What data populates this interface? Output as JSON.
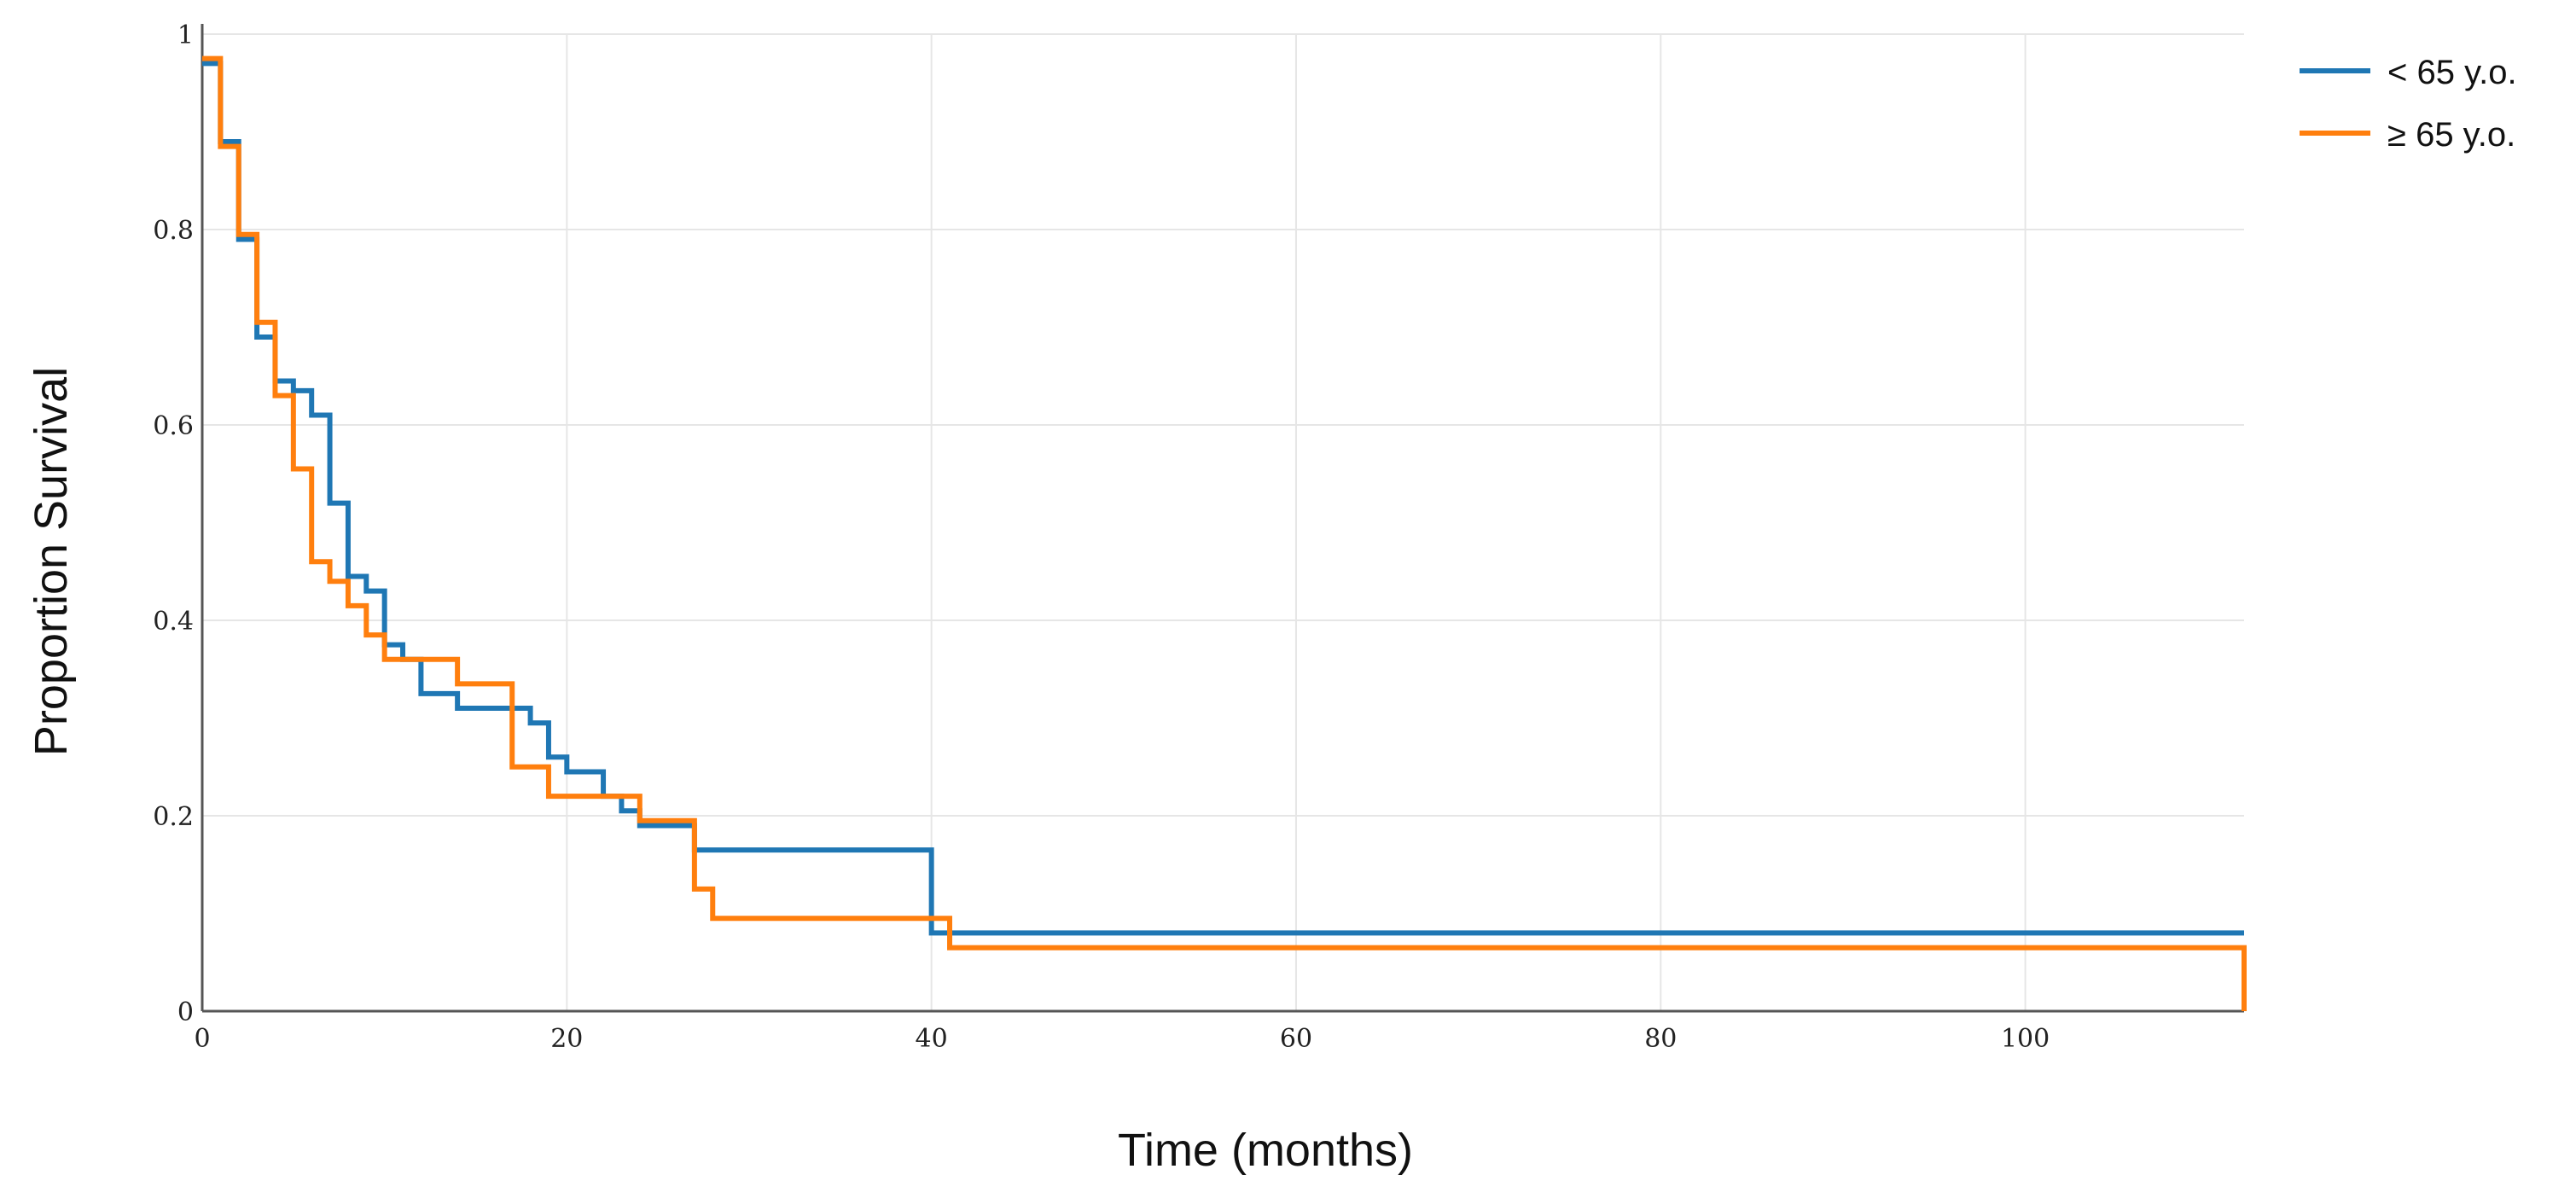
{
  "chart_data": {
    "type": "line",
    "step": true,
    "title": "",
    "xlabel": "Time (months)",
    "ylabel": "Proportion Survival",
    "xlim": [
      0,
      112
    ],
    "ylim": [
      0,
      1
    ],
    "x_ticks": [
      0,
      20,
      40,
      60,
      80,
      100
    ],
    "x_tick_labels": [
      "0",
      "20",
      "40",
      "60",
      "80",
      "100"
    ],
    "y_ticks": [
      0,
      0.2,
      0.4,
      0.6,
      0.8,
      1
    ],
    "y_tick_labels": [
      "0",
      "0.2",
      "0.4",
      "0.6",
      "0.8",
      "1"
    ],
    "grid": true,
    "legend_position": "top-right",
    "series": [
      {
        "name": "< 65 y.o.",
        "color": "#1f77b4",
        "x": [
          0,
          1,
          2,
          3,
          4,
          5,
          6,
          7,
          8,
          9,
          10,
          11,
          12,
          14,
          18,
          19,
          20,
          22,
          23,
          24,
          27,
          40,
          112
        ],
        "y": [
          0.97,
          0.89,
          0.79,
          0.69,
          0.645,
          0.635,
          0.61,
          0.52,
          0.445,
          0.43,
          0.375,
          0.36,
          0.325,
          0.31,
          0.295,
          0.26,
          0.245,
          0.22,
          0.205,
          0.19,
          0.165,
          0.08,
          0.08
        ]
      },
      {
        "name": "≥ 65 y.o.",
        "color": "#ff7f0e",
        "x": [
          0,
          1,
          2,
          3,
          4,
          5,
          6,
          7,
          8,
          9,
          10,
          14,
          17,
          19,
          24,
          27,
          28,
          41,
          112
        ],
        "y": [
          0.975,
          0.885,
          0.795,
          0.705,
          0.63,
          0.555,
          0.46,
          0.44,
          0.415,
          0.385,
          0.36,
          0.335,
          0.25,
          0.22,
          0.195,
          0.125,
          0.095,
          0.065,
          0
        ]
      }
    ]
  }
}
